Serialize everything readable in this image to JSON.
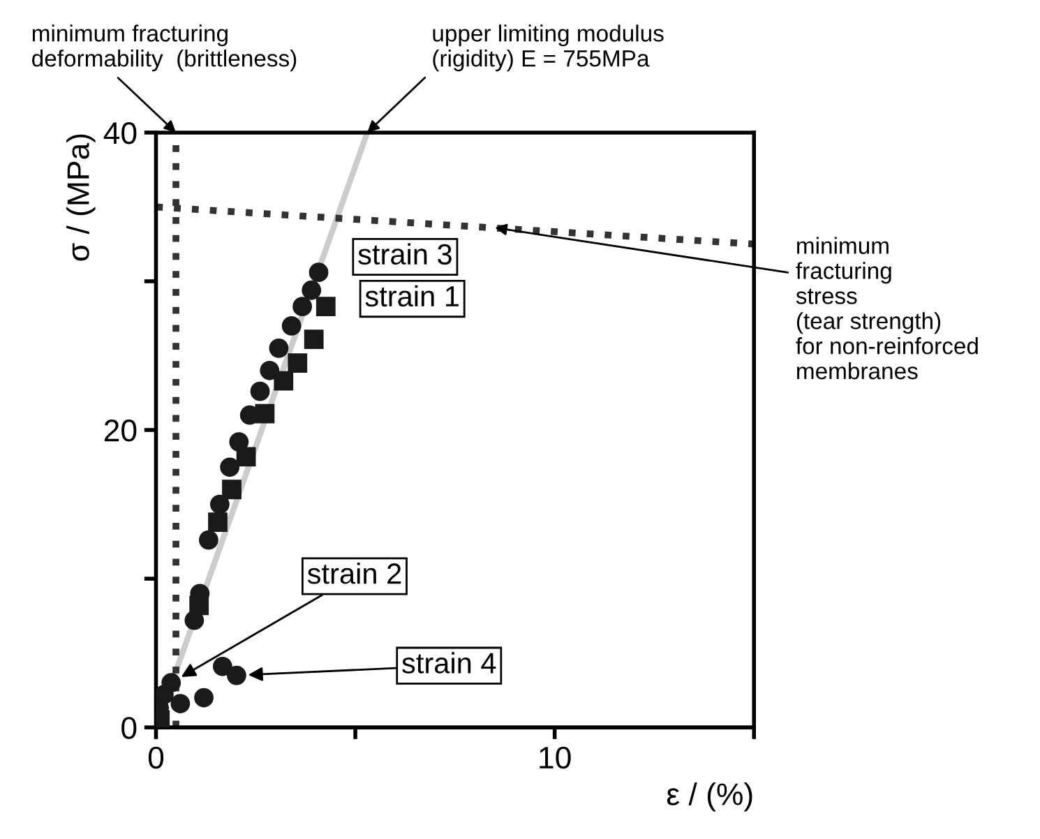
{
  "chart_data": {
    "type": "scatter",
    "xlabel": "ε / (%)",
    "ylabel": "σ / (MPa)",
    "xlim": [
      0,
      15
    ],
    "ylim": [
      0,
      40
    ],
    "xticks": [
      0,
      {
        "value": 5,
        "label": null
      },
      10,
      {
        "value": 15,
        "label": null
      }
    ],
    "yticks": [
      0,
      {
        "value": 10,
        "label": null
      },
      20,
      {
        "value": 30,
        "label": null
      },
      40
    ],
    "grid": false,
    "series": [
      {
        "name": "strain 3",
        "color": "#1a1a1a",
        "marker": "circle",
        "x": [
          0.96,
          1.1,
          1.32,
          1.6,
          1.85,
          2.08,
          2.35,
          2.61,
          2.85,
          3.08,
          3.4,
          3.67,
          3.9,
          4.08
        ],
        "values": [
          7.2,
          9.0,
          12.6,
          15.0,
          17.5,
          19.2,
          21.0,
          22.6,
          24.0,
          25.5,
          27.0,
          28.3,
          29.4,
          30.6
        ]
      },
      {
        "name": "strain 1",
        "color": "#1a1a1a",
        "marker": "square",
        "x": [
          0.1,
          1.08,
          1.55,
          1.9,
          2.26,
          2.73,
          3.2,
          3.55,
          3.96,
          4.26
        ],
        "values": [
          0.5,
          8.2,
          13.8,
          16.0,
          18.2,
          21.1,
          23.3,
          24.5,
          26.1,
          28.3
        ]
      },
      {
        "name": "strain 2",
        "color": "#1a1a1a",
        "marker": "circle",
        "x": [
          0.08,
          0.2,
          0.38
        ],
        "values": [
          1.3,
          2.2,
          3.0
        ]
      },
      {
        "name": "strain 4",
        "color": "#1a1a1a",
        "marker": "circle",
        "x": [
          0.61,
          1.2,
          1.67,
          2.02
        ],
        "values": [
          1.6,
          2.0,
          4.1,
          3.5
        ]
      },
      {
        "type": "line",
        "color": "#cccccc",
        "marker": "none",
        "line_style": "solid",
        "x": [
          0,
          5.3
        ],
        "values": [
          0,
          40
        ]
      },
      {
        "type": "line",
        "color": "#333333",
        "marker": "none",
        "line_style": "dotted",
        "x": [
          0.5,
          0.5
        ],
        "values": [
          0,
          40
        ]
      },
      {
        "type": "line",
        "color": "#333333",
        "marker": "none",
        "line_style": "dotted",
        "x": [
          0,
          15
        ],
        "values": [
          35,
          32.5
        ]
      }
    ],
    "annotations": [
      {
        "text": "minimum fracturing\ndeformability  (brittleness)",
        "x": 0.5,
        "y": 40
      },
      {
        "text": "upper limiting modulus\n(rigidity) E = 755MPa",
        "x": 5.3,
        "y": 40
      },
      {
        "text": "minimum\nfracturing\nstress\n(tear strength)\nfor non-reinforced\nmembranes",
        "x": 8.5,
        "y": 33.6
      }
    ]
  }
}
